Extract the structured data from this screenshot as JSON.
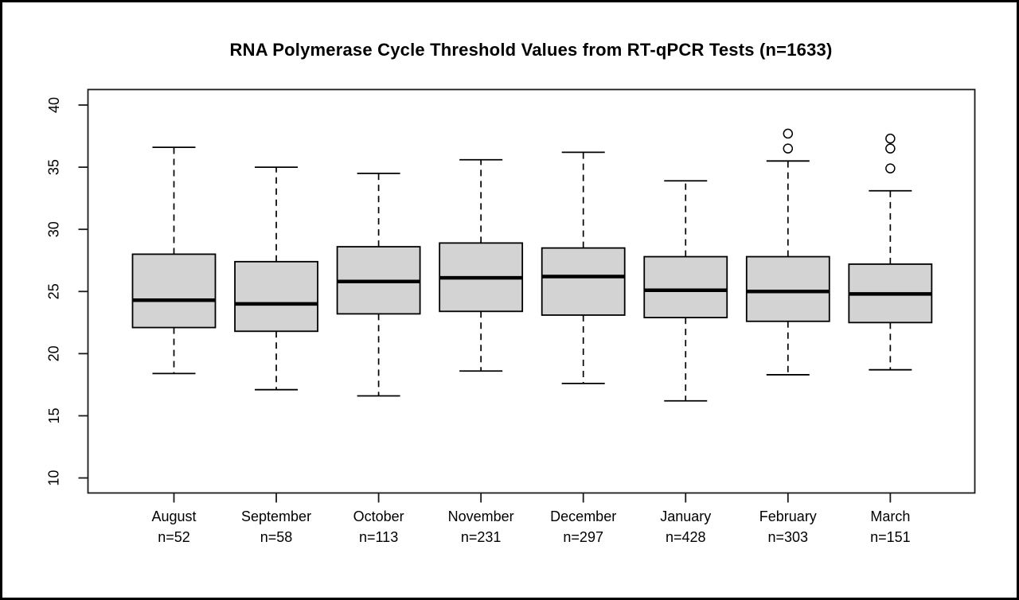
{
  "page": {
    "background_color": "#ffffff",
    "border_color": "#000000"
  },
  "chart_data": {
    "type": "boxplot",
    "title": "RNA Polymerase Cycle Threshold Values from RT-qPCR Tests (n=1633)",
    "xlabel": "",
    "ylabel": "",
    "ylim": [
      10,
      40
    ],
    "yticks": [
      10,
      15,
      20,
      25,
      30,
      35,
      40
    ],
    "grid": false,
    "legend": "none",
    "box_fill_color": "#d3d3d3",
    "line_color": "#000000",
    "total_n": 1633,
    "groups": [
      {
        "label": "August",
        "n_label": "n=52",
        "n": 52,
        "whisker_low": 18.4,
        "q1": 22.1,
        "median": 24.3,
        "q3": 28.0,
        "whisker_high": 36.6,
        "outliers": []
      },
      {
        "label": "September",
        "n_label": "n=58",
        "n": 58,
        "whisker_low": 17.1,
        "q1": 21.8,
        "median": 24.0,
        "q3": 27.4,
        "whisker_high": 35.0,
        "outliers": []
      },
      {
        "label": "October",
        "n_label": "n=113",
        "n": 113,
        "whisker_low": 16.6,
        "q1": 23.2,
        "median": 25.8,
        "q3": 28.6,
        "whisker_high": 34.5,
        "outliers": []
      },
      {
        "label": "November",
        "n_label": "n=231",
        "n": 231,
        "whisker_low": 18.6,
        "q1": 23.4,
        "median": 26.1,
        "q3": 28.9,
        "whisker_high": 35.6,
        "outliers": []
      },
      {
        "label": "December",
        "n_label": "n=297",
        "n": 297,
        "whisker_low": 17.6,
        "q1": 23.1,
        "median": 26.2,
        "q3": 28.5,
        "whisker_high": 36.2,
        "outliers": []
      },
      {
        "label": "January",
        "n_label": "n=428",
        "n": 428,
        "whisker_low": 16.2,
        "q1": 22.9,
        "median": 25.1,
        "q3": 27.8,
        "whisker_high": 33.9,
        "outliers": []
      },
      {
        "label": "February",
        "n_label": "n=303",
        "n": 303,
        "whisker_low": 18.3,
        "q1": 22.6,
        "median": 25.0,
        "q3": 27.8,
        "whisker_high": 35.5,
        "outliers": [
          36.5,
          37.7
        ]
      },
      {
        "label": "March",
        "n_label": "n=151",
        "n": 151,
        "whisker_low": 18.7,
        "q1": 22.5,
        "median": 24.8,
        "q3": 27.2,
        "whisker_high": 33.1,
        "outliers": [
          34.9,
          36.5,
          37.3
        ]
      }
    ]
  }
}
